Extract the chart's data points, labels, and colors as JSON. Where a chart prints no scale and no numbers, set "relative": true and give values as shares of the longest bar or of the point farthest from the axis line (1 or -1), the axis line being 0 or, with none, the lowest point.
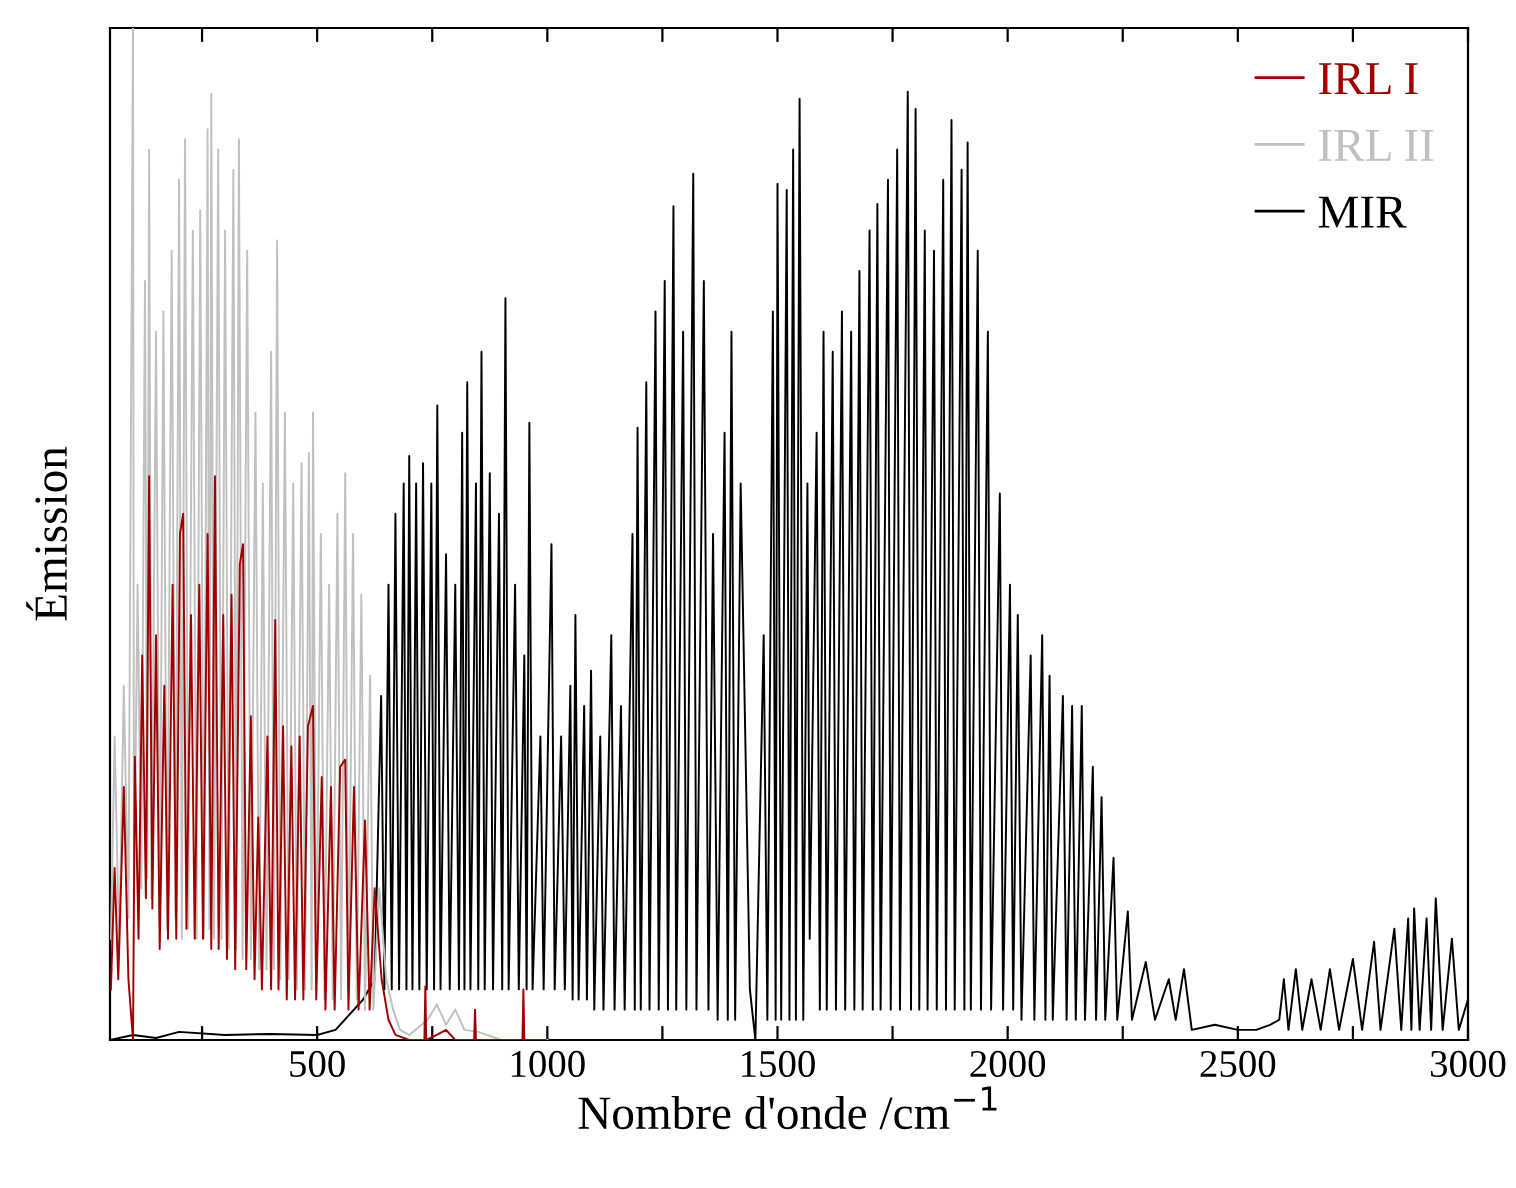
{
  "chart_data": {
    "type": "line",
    "xlabel": "Nombre d'onde /cm$^{−1}$",
    "ylabel": "Émission",
    "relative": true,
    "legend": "top right",
    "grid": false,
    "xlim": [
      50,
      3000
    ],
    "xticks": [
      {
        "value": 250,
        "label": null
      },
      500,
      {
        "value": 750,
        "label": null
      },
      1000,
      {
        "value": 1250,
        "label": null
      },
      1500,
      {
        "value": 1750,
        "label": null
      },
      2000,
      {
        "value": 2250,
        "label": null
      },
      2500,
      {
        "value": 2750,
        "label": null
      },
      3000
    ],
    "series": [
      {
        "name": "IRL I",
        "color": "#a00000",
        "x": [
          52,
          60,
          68,
          80,
          90,
          100,
          104,
          112,
          120,
          128,
          135,
          142,
          150,
          158,
          168,
          176,
          186,
          194,
          202,
          209,
          216,
          226,
          234,
          244,
          252,
          262,
          270,
          278,
          286,
          296,
          304,
          314,
          322,
          332,
          339,
          346,
          356,
          364,
          372,
          380,
          392,
          400,
          409,
          416,
          426,
          434,
          444,
          452,
          462,
          470,
          480,
          491,
          498,
          510,
          518,
          530,
          538,
          550,
          561,
          568,
          580,
          590,
          604,
          614,
          625,
          640,
          655,
          670,
          700,
          733,
          735,
          737,
          760,
          780,
          800,
          841,
          843,
          845,
          900,
          946,
          948,
          950,
          996
        ],
        "values": [
          0.05,
          0.17,
          0.06,
          0.25,
          0.06,
          0.0,
          0.28,
          0.1,
          0.38,
          0.14,
          0.557,
          0.13,
          0.4,
          0.09,
          0.35,
          0.1,
          0.45,
          0.1,
          0.5,
          0.52,
          0.11,
          0.42,
          0.1,
          0.45,
          0.1,
          0.5,
          0.09,
          0.557,
          0.09,
          0.42,
          0.08,
          0.44,
          0.07,
          0.47,
          0.49,
          0.07,
          0.32,
          0.06,
          0.22,
          0.05,
          0.3,
          0.05,
          0.415,
          0.05,
          0.31,
          0.04,
          0.29,
          0.04,
          0.3,
          0.04,
          0.31,
          0.33,
          0.04,
          0.26,
          0.03,
          0.25,
          0.03,
          0.27,
          0.277,
          0.03,
          0.25,
          0.03,
          0.217,
          0.03,
          0.15,
          0.06,
          0.02,
          0.005,
          0.0,
          0.0,
          0.053,
          0.0,
          0.005,
          0.01,
          0.0,
          0.0,
          0.03,
          0.0,
          0.0,
          0.0,
          0.05,
          0.0,
          0.0
        ]
      },
      {
        "name": "IRL II",
        "color": "#c0c0c0",
        "x": [
          52,
          60,
          70,
          80,
          90,
          100,
          102,
          110,
          118,
          126,
          131,
          135,
          140,
          150,
          158,
          166,
          174,
          184,
          192,
          200,
          206,
          213,
          220,
          230,
          238,
          246,
          254,
          262,
          266,
          270,
          276,
          285,
          292,
          300,
          308,
          318,
          324,
          330,
          338,
          348,
          356,
          366,
          374,
          382,
          390,
          400,
          406,
          413,
          420,
          430,
          438,
          448,
          456,
          466,
          474,
          482,
          488,
          491,
          498,
          508,
          516,
          526,
          534,
          544,
          552,
          561,
          568,
          578,
          586,
          596,
          604,
          615,
          622,
          635,
          650,
          665,
          680,
          700,
          740,
          760,
          780,
          800,
          820,
          850,
          900,
          1000
        ],
        "values": [
          0.1,
          0.3,
          0.09,
          0.35,
          0.12,
          1.0,
          0.14,
          0.45,
          0.15,
          0.75,
          0.16,
          0.88,
          0.14,
          0.7,
          0.12,
          0.72,
          0.11,
          0.78,
          0.12,
          0.85,
          0.1,
          0.89,
          0.11,
          0.8,
          0.1,
          0.82,
          0.1,
          0.9,
          0.11,
          0.935,
          0.1,
          0.88,
          0.1,
          0.8,
          0.09,
          0.86,
          0.09,
          0.89,
          0.08,
          0.78,
          0.08,
          0.62,
          0.07,
          0.55,
          0.07,
          0.68,
          0.07,
          0.79,
          0.06,
          0.62,
          0.06,
          0.55,
          0.05,
          0.57,
          0.05,
          0.58,
          0.05,
          0.62,
          0.05,
          0.5,
          0.04,
          0.45,
          0.04,
          0.52,
          0.04,
          0.56,
          0.04,
          0.5,
          0.04,
          0.44,
          0.03,
          0.36,
          0.03,
          0.15,
          0.06,
          0.03,
          0.01,
          0.005,
          0.02,
          0.035,
          0.015,
          0.03,
          0.01,
          0.008,
          0.0,
          0.0
        ]
      },
      {
        "name": "MIR",
        "color": "#000000",
        "x": [
          50,
          100,
          150,
          200,
          300,
          400,
          500,
          540,
          570,
          600,
          625,
          639,
          646,
          655,
          662,
          670,
          678,
          688,
          694,
          700,
          707,
          715,
          722,
          730,
          738,
          748,
          754,
          761,
          768,
          780,
          788,
          800,
          808,
          815,
          820,
          826,
          833,
          845,
          850,
          857,
          864,
          875,
          882,
          895,
          902,
          909,
          916,
          930,
          938,
          950,
          955,
          961,
          968,
          985,
          992,
          1009,
          1016,
          1030,
          1038,
          1050,
          1055,
          1061,
          1068,
          1080,
          1086,
          1095,
          1102,
          1115,
          1122,
          1139,
          1146,
          1160,
          1168,
          1185,
          1190,
          1196,
          1203,
          1215,
          1222,
          1235,
          1242,
          1255,
          1262,
          1274,
          1280,
          1295,
          1302,
          1317,
          1324,
          1340,
          1350,
          1360,
          1370,
          1385,
          1392,
          1400,
          1408,
          1420,
          1440,
          1452,
          1470,
          1478,
          1490,
          1496,
          1500,
          1508,
          1520,
          1526,
          1534,
          1540,
          1548,
          1556,
          1565,
          1570,
          1585,
          1592,
          1600,
          1607,
          1620,
          1627,
          1640,
          1647,
          1660,
          1667,
          1678,
          1685,
          1700,
          1707,
          1717,
          1724,
          1740,
          1746,
          1760,
          1766,
          1783,
          1790,
          1800,
          1808,
          1820,
          1826,
          1840,
          1846,
          1860,
          1866,
          1878,
          1885,
          1900,
          1906,
          1913,
          1920,
          1935,
          1942,
          1957,
          1964,
          1983,
          1990,
          2005,
          2012,
          2022,
          2030,
          2050,
          2058,
          2075,
          2082,
          2091,
          2098,
          2120,
          2128,
          2140,
          2148,
          2161,
          2168,
          2185,
          2192,
          2204,
          2212,
          2230,
          2238,
          2261,
          2270,
          2300,
          2320,
          2350,
          2365,
          2383,
          2400,
          2450,
          2500,
          2540,
          2570,
          2590,
          2600,
          2610,
          2626,
          2640,
          2660,
          2680,
          2700,
          2720,
          2750,
          2770,
          2796,
          2810,
          2840,
          2855,
          2870,
          2877,
          2883,
          2895,
          2910,
          2920,
          2930,
          2945,
          2965,
          2980,
          3000
        ],
        "values": [
          0.0,
          0.005,
          0.002,
          0.008,
          0.005,
          0.006,
          0.005,
          0.01,
          0.025,
          0.04,
          0.06,
          0.34,
          0.05,
          0.45,
          0.05,
          0.52,
          0.05,
          0.55,
          0.05,
          0.577,
          0.05,
          0.55,
          0.05,
          0.57,
          0.05,
          0.55,
          0.05,
          0.627,
          0.05,
          0.48,
          0.05,
          0.45,
          0.05,
          0.6,
          0.05,
          0.65,
          0.05,
          0.55,
          0.05,
          0.68,
          0.05,
          0.56,
          0.05,
          0.52,
          0.05,
          0.733,
          0.05,
          0.45,
          0.05,
          0.38,
          0.05,
          0.61,
          0.05,
          0.3,
          0.05,
          0.49,
          0.05,
          0.3,
          0.05,
          0.35,
          0.04,
          0.42,
          0.04,
          0.33,
          0.04,
          0.365,
          0.03,
          0.3,
          0.03,
          0.4,
          0.03,
          0.33,
          0.03,
          0.5,
          0.03,
          0.605,
          0.03,
          0.65,
          0.03,
          0.72,
          0.03,
          0.75,
          0.03,
          0.824,
          0.03,
          0.7,
          0.03,
          0.856,
          0.03,
          0.75,
          0.03,
          0.5,
          0.02,
          0.6,
          0.02,
          0.7,
          0.02,
          0.55,
          0.05,
          0.0,
          0.4,
          0.02,
          0.72,
          0.02,
          0.846,
          0.02,
          0.84,
          0.02,
          0.88,
          0.02,
          0.93,
          0.02,
          0.55,
          0.1,
          0.6,
          0.03,
          0.7,
          0.03,
          0.68,
          0.03,
          0.72,
          0.03,
          0.7,
          0.03,
          0.76,
          0.03,
          0.8,
          0.03,
          0.826,
          0.03,
          0.85,
          0.03,
          0.88,
          0.03,
          0.937,
          0.03,
          0.92,
          0.03,
          0.8,
          0.03,
          0.78,
          0.03,
          0.85,
          0.03,
          0.909,
          0.03,
          0.86,
          0.03,
          0.887,
          0.03,
          0.78,
          0.03,
          0.7,
          0.03,
          0.54,
          0.03,
          0.45,
          0.03,
          0.42,
          0.02,
          0.38,
          0.02,
          0.4,
          0.02,
          0.36,
          0.02,
          0.34,
          0.02,
          0.33,
          0.02,
          0.33,
          0.02,
          0.27,
          0.02,
          0.24,
          0.02,
          0.18,
          0.02,
          0.127,
          0.02,
          0.077,
          0.02,
          0.06,
          0.02,
          0.07,
          0.01,
          0.015,
          0.01,
          0.01,
          0.015,
          0.02,
          0.06,
          0.01,
          0.07,
          0.01,
          0.06,
          0.01,
          0.07,
          0.01,
          0.08,
          0.01,
          0.097,
          0.01,
          0.11,
          0.01,
          0.12,
          0.01,
          0.13,
          0.01,
          0.12,
          0.01,
          0.14,
          0.01,
          0.1,
          0.01,
          0.04
        ]
      }
    ]
  }
}
